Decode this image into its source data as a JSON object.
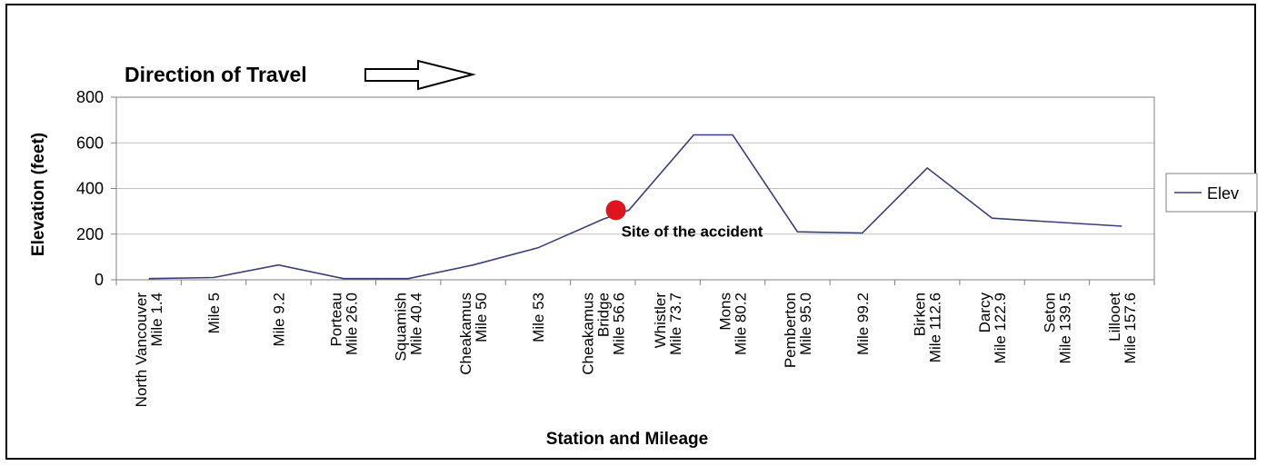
{
  "chart_data": {
    "type": "line",
    "title": "",
    "direction_label": "Direction of Travel",
    "ylabel": "Elevation (feet)",
    "xlabel": "Station and Mileage",
    "ylim": [
      0,
      800
    ],
    "yticks": [
      0,
      200,
      400,
      600,
      800
    ],
    "grid": true,
    "legend_position": "right",
    "categories": [
      [
        "North Vancouver",
        "Mile 1.4"
      ],
      [
        "Mile 5"
      ],
      [
        "Mile 9.2"
      ],
      [
        "Porteau",
        "Mile 26.0"
      ],
      [
        "Squamish",
        "Mile 40.4"
      ],
      [
        "Cheakamus",
        "Mile 50"
      ],
      [
        "Mile 53"
      ],
      [
        "Cheakamus",
        "Bridge",
        "Mile 56.6"
      ],
      [
        "Whistler",
        "Mile 73.7"
      ],
      [
        "Mons",
        "Mile 80.2"
      ],
      [
        "Pemberton",
        "Mile 95.0"
      ],
      [
        "Mile 99.2"
      ],
      [
        "Birken",
        "Mile 112.6"
      ],
      [
        "Darcy",
        "Mile 122.9"
      ],
      [
        "Seton",
        "Mile 139.5"
      ],
      [
        "Lillooet",
        "Mile 157.6"
      ]
    ],
    "series": [
      {
        "name": "Elev",
        "color": "#3b3f78",
        "x_points": [
          0,
          1,
          2,
          3,
          4,
          5,
          6,
          7,
          7.4,
          8.4,
          9,
          10,
          11,
          12,
          13,
          15
        ],
        "values": [
          5,
          10,
          65,
          5,
          5,
          65,
          140,
          265,
          305,
          635,
          635,
          210,
          205,
          490,
          270,
          235
        ]
      }
    ],
    "annotation": {
      "text": "Site of the accident",
      "x_point": 7.2,
      "y": 305,
      "marker_color": "#e0141e"
    }
  }
}
